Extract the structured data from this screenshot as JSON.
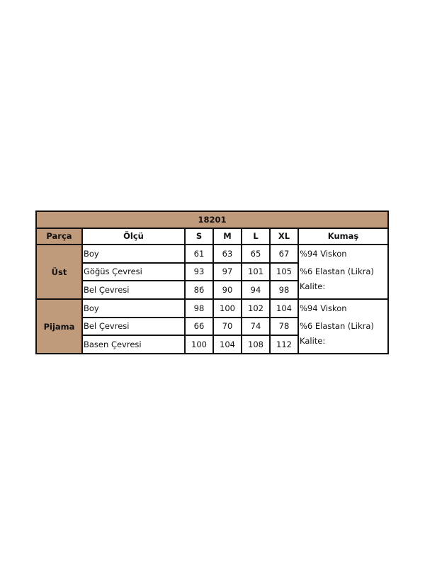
{
  "title": "18201",
  "headers": [
    "Parça",
    "Ölçü",
    "S",
    "M",
    "L",
    "XL",
    "Kumaş"
  ],
  "colors": {
    "header_bg": "#bf9b7b",
    "border": "#111111"
  },
  "groups": [
    {
      "part": "Üst",
      "rows": [
        {
          "measure": "Boy",
          "values": [
            "61",
            "63",
            "65",
            "67"
          ]
        },
        {
          "measure": "Göğüs Çevresi",
          "values": [
            "93",
            "97",
            "101",
            "105"
          ]
        },
        {
          "measure": "Bel Çevresi",
          "values": [
            "86",
            "90",
            "94",
            "98"
          ]
        }
      ],
      "fabric": [
        "%94 Viskon",
        "%6 Elastan (Likra)",
        "Kalite:"
      ]
    },
    {
      "part": "Pijama",
      "rows": [
        {
          "measure": "Boy",
          "values": [
            "98",
            "100",
            "102",
            "104"
          ]
        },
        {
          "measure": "Bel Çevresi",
          "values": [
            "66",
            "70",
            "74",
            "78"
          ]
        },
        {
          "measure": "Basen Çevresi",
          "values": [
            "100",
            "104",
            "108",
            "112"
          ]
        }
      ],
      "fabric": [
        "%94 Viskon",
        "%6 Elastan (Likra)",
        "Kalite:"
      ]
    }
  ]
}
